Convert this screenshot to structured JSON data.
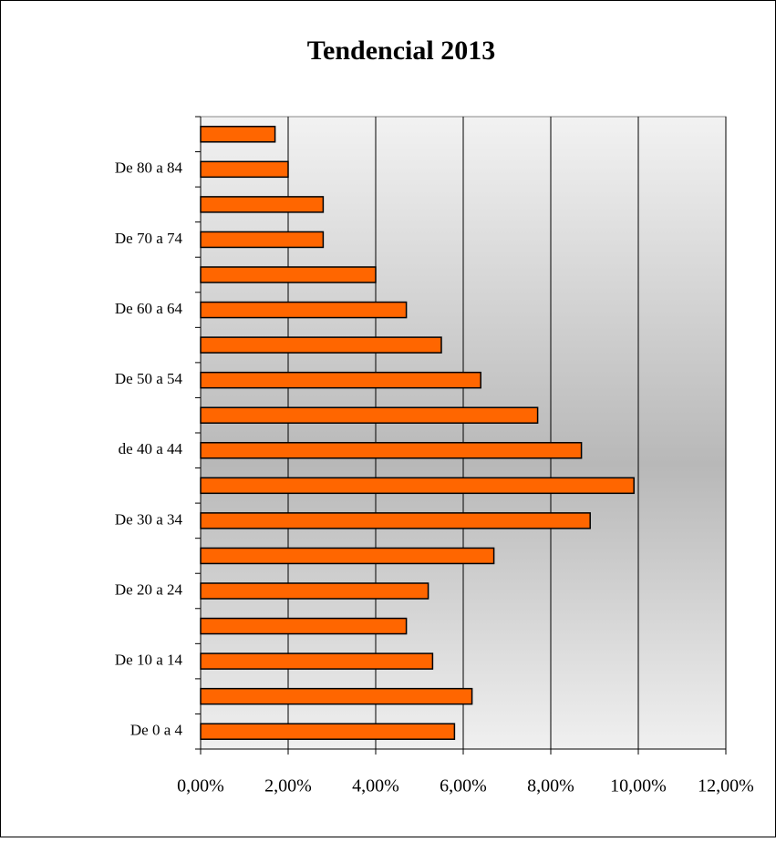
{
  "chart_data": {
    "type": "barh",
    "title": "Tendencial 2013",
    "categories": [
      "De 0 a 4",
      null,
      "De 10 a 14",
      null,
      "De 20 a 24",
      null,
      "De 30 a 34",
      null,
      "de 40 a 44",
      null,
      "De 50 a 54",
      null,
      "De 60 a 64",
      null,
      "De 70 a 74",
      null,
      "De 80 a 84",
      null
    ],
    "values": [
      5.8,
      6.2,
      5.3,
      4.7,
      5.2,
      6.7,
      8.9,
      9.9,
      8.7,
      7.7,
      6.4,
      5.5,
      4.7,
      4.0,
      2.8,
      2.8,
      2.0,
      1.7
    ],
    "color": "#ff6600",
    "xlim": [
      0,
      12
    ],
    "xticks": [
      {
        "value": 0,
        "label": "0,00%"
      },
      {
        "value": 2,
        "label": "2,00%"
      },
      {
        "value": 4,
        "label": "4,00%"
      },
      {
        "value": 6,
        "label": "6,00%"
      },
      {
        "value": 8,
        "label": "8,00%"
      },
      {
        "value": 10,
        "label": "10,00%"
      },
      {
        "value": 12,
        "label": "12,00%"
      }
    ],
    "grid": true
  }
}
